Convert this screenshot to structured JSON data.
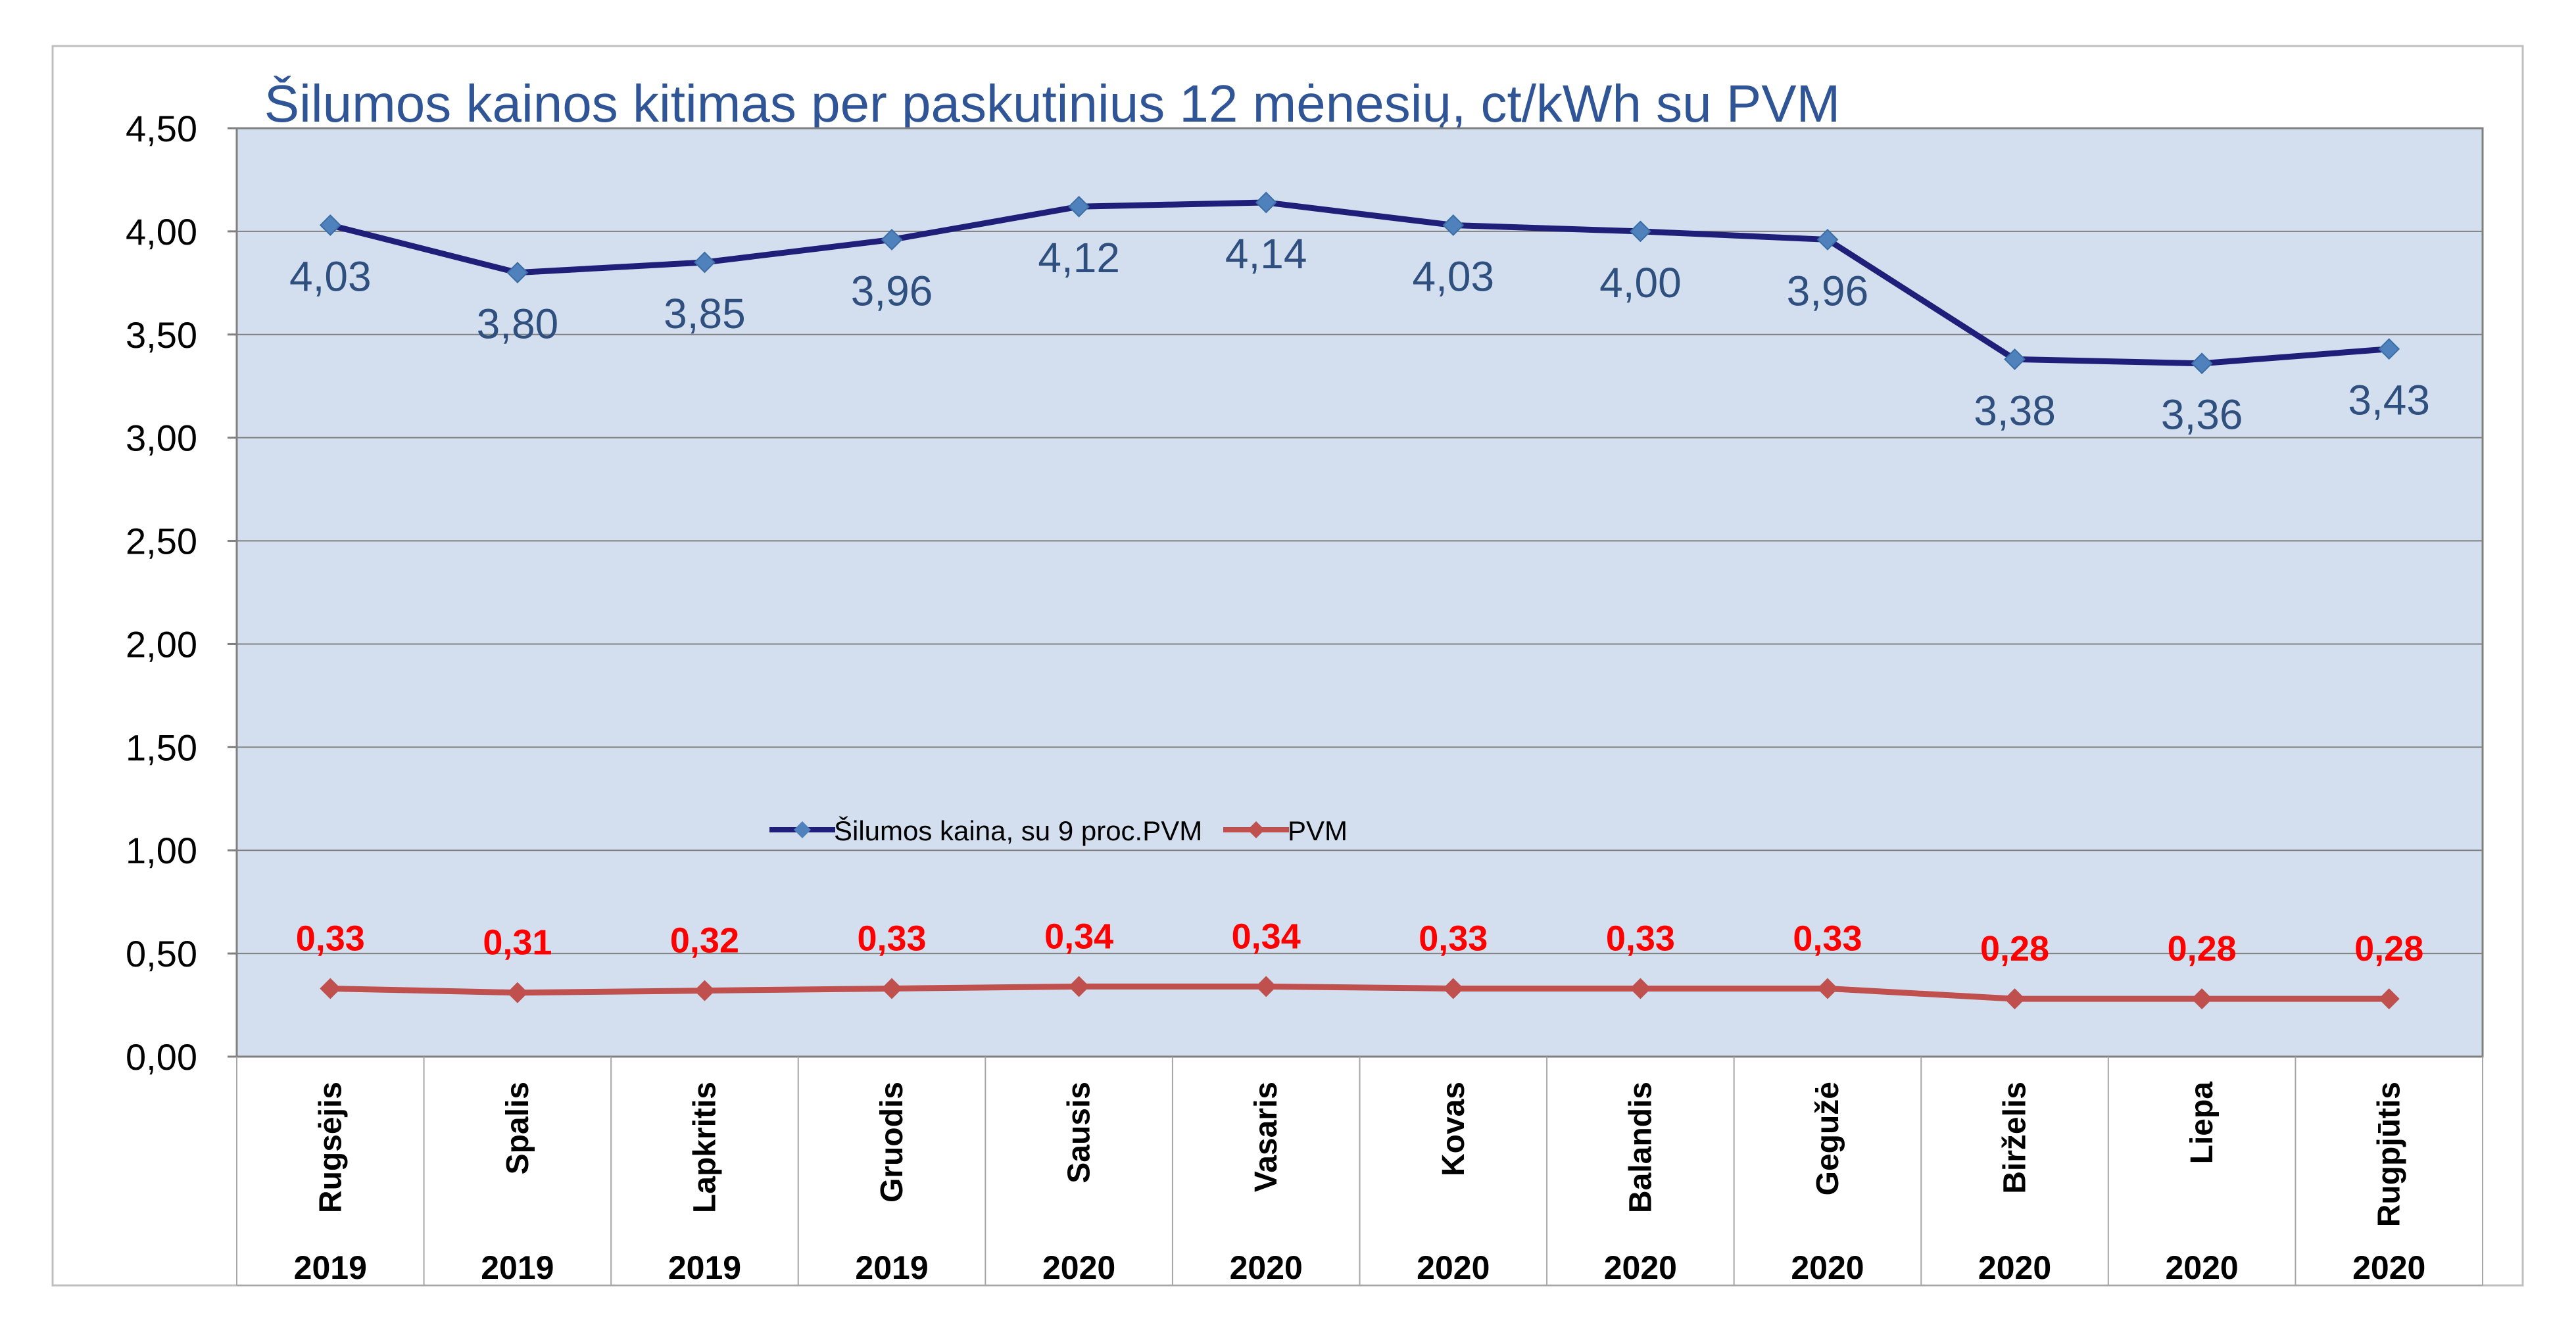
{
  "chart_data": {
    "type": "line",
    "title": "Šilumos kainos kitimas per paskutinius 12 mėnesių, ct/kWh su PVM",
    "xlabel": "",
    "ylabel": "",
    "ylim": [
      0,
      4.5
    ],
    "yticks": [
      "0,00",
      "0,50",
      "1,00",
      "1,50",
      "2,00",
      "2,50",
      "3,00",
      "3,50",
      "4,00",
      "4,50"
    ],
    "grid": true,
    "legend_position": "center",
    "categories": [
      {
        "month": "Rugsėjis",
        "year": "2019"
      },
      {
        "month": "Spalis",
        "year": "2019"
      },
      {
        "month": "Lapkritis",
        "year": "2019"
      },
      {
        "month": "Gruodis",
        "year": "2019"
      },
      {
        "month": "Sausis",
        "year": "2020"
      },
      {
        "month": "Vasaris",
        "year": "2020"
      },
      {
        "month": "Kovas",
        "year": "2020"
      },
      {
        "month": "Balandis",
        "year": "2020"
      },
      {
        "month": "Gegužė",
        "year": "2020"
      },
      {
        "month": "Birželis",
        "year": "2020"
      },
      {
        "month": "Liepa",
        "year": "2020"
      },
      {
        "month": "Rugpjūtis",
        "year": "2020"
      }
    ],
    "series": [
      {
        "name": "Šilumos kaina, su 9 proc.PVM",
        "color": "#1f1f7a",
        "marker_color": "#4f81bd",
        "label_color": "#2f4f7f",
        "values": [
          4.03,
          3.8,
          3.85,
          3.96,
          4.12,
          4.14,
          4.03,
          4.0,
          3.96,
          3.38,
          3.36,
          3.43
        ],
        "labels": [
          "4,03",
          "3,80",
          "3,85",
          "3,96",
          "4,12",
          "4,14",
          "4,03",
          "4,00",
          "3,96",
          "3,38",
          "3,36",
          "3,43"
        ]
      },
      {
        "name": "PVM",
        "color": "#c0504d",
        "marker_color": "#c0504d",
        "label_color": "#ff0000",
        "values": [
          0.33,
          0.31,
          0.32,
          0.33,
          0.34,
          0.34,
          0.33,
          0.33,
          0.33,
          0.28,
          0.28,
          0.28
        ],
        "labels": [
          "0,33",
          "0,31",
          "0,32",
          "0,33",
          "0,34",
          "0,34",
          "0,33",
          "0,33",
          "0,33",
          "0,28",
          "0,28",
          "0,28"
        ]
      }
    ],
    "plot_background": "#d3dfee",
    "title_color": "#2f5597"
  }
}
